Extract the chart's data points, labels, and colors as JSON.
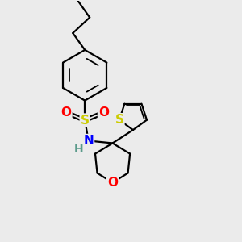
{
  "background_color": "#ebebeb",
  "bond_color": "#000000",
  "bond_width": 1.6,
  "atom_colors": {
    "S_sulfonyl": "#cccc00",
    "O": "#ff0000",
    "N": "#0000ff",
    "H": "#5a9a8a",
    "S_thiophene": "#cccc00",
    "C": "#000000"
  },
  "figsize": [
    3.0,
    3.0
  ],
  "dpi": 100
}
